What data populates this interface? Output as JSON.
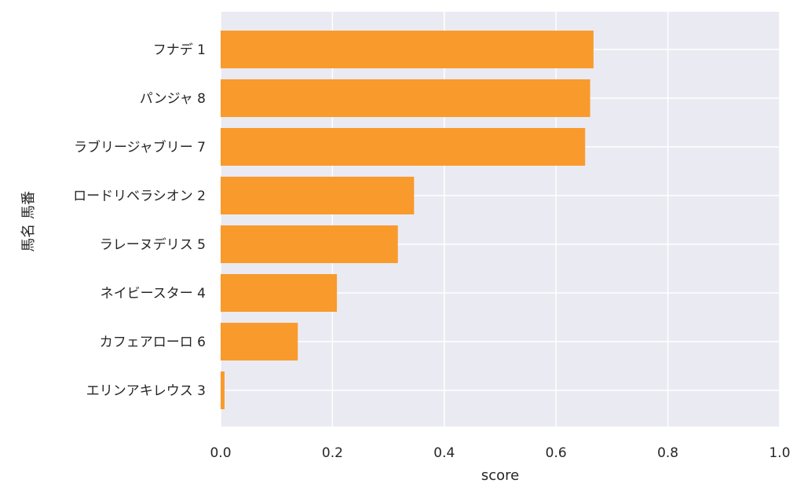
{
  "chart_data": {
    "type": "bar",
    "orientation": "horizontal",
    "categories": [
      "フナデ 1",
      "パンジャ 8",
      "ラブリージャブリー 7",
      "ロードリベラシオン 2",
      "ラレーヌデリス 5",
      "ネイビースター 4",
      "カフェアローロ 6",
      "エリンアキレウス 3"
    ],
    "values": [
      0.667,
      0.661,
      0.652,
      0.346,
      0.317,
      0.208,
      0.138,
      0.007
    ],
    "xlabel": "score",
    "ylabel": "馬名 馬番",
    "xlim": [
      0,
      1
    ],
    "xticks": [
      "0.0",
      "0.2",
      "0.4",
      "0.6",
      "0.8",
      "1.0"
    ],
    "grid": true,
    "colors": {
      "bar": "#f99a2c",
      "plot_background": "#eaeaf2",
      "grid": "#ffffff"
    }
  }
}
